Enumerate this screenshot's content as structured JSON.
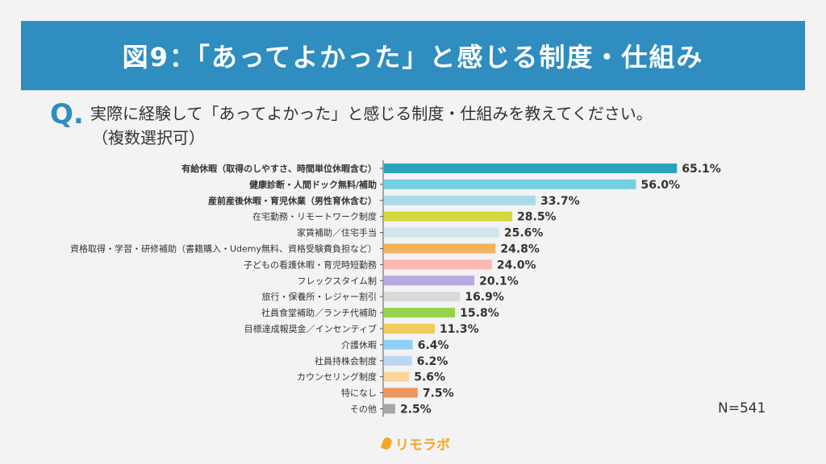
{
  "header": {
    "title": "図9：「あってよかった」と感じる制度・仕組み"
  },
  "question": {
    "mark": "Q.",
    "line1": "実際に経験して「あってよかった」と感じる制度・仕組みを教えてください。",
    "line2": "（複数選択可）"
  },
  "sample_size": "N=541",
  "logo": {
    "text": "リモラボ"
  },
  "chart_data": {
    "type": "bar",
    "orientation": "horizontal",
    "categories": [
      "有給休暇（取得のしやすさ、時間単位休暇含む）",
      "健康診断・人間ドック無料/補助",
      "産前産後休暇・育児休業（男性育休含む）",
      "在宅勤務・リモートワーク制度",
      "家賃補助／住宅手当",
      "資格取得・学習・研修補助（書籍購入・Udemy無料、資格受験費負担など）",
      "子どもの看護休暇・育児時短勤務",
      "フレックスタイム制",
      "旅行・保養所・レジャー割引",
      "社員食堂補助／ランチ代補助",
      "目標達成報奨金／インセンティブ",
      "介護休暇",
      "社員持株会制度",
      "カウンセリング制度",
      "特になし",
      "その他"
    ],
    "values": [
      65.1,
      56.0,
      33.7,
      28.5,
      25.6,
      24.8,
      24.0,
      20.1,
      16.9,
      15.8,
      11.3,
      6.4,
      6.2,
      5.6,
      7.5,
      2.5
    ],
    "value_labels": [
      "65.1%",
      "56.0%",
      "33.7%",
      "28.5%",
      "25.6%",
      "24.8%",
      "24.0%",
      "20.1%",
      "16.9%",
      "15.8%",
      "11.3%",
      "6.4%",
      "6.2%",
      "5.6%",
      "7.5%",
      "2.5%"
    ],
    "bold_categories": [
      0,
      1,
      2
    ],
    "colors": [
      "#2ba3bd",
      "#76cfe0",
      "#a9dbe6",
      "#d4d83a",
      "#cfe6ea",
      "#f7b25c",
      "#fdb8b2",
      "#b9a8e1",
      "#d9d9d9",
      "#95d34b",
      "#f1cb5e",
      "#8fd0f6",
      "#bcd8f1",
      "#fcd59a",
      "#f0955d",
      "#a6a6a6"
    ],
    "xlim": [
      0,
      100
    ],
    "grid": false,
    "legend": "none"
  }
}
